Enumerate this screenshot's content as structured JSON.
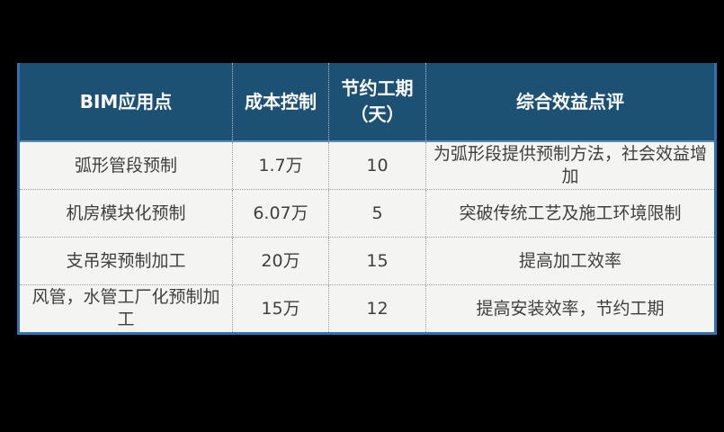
{
  "page": {
    "background_color": "#000000"
  },
  "table": {
    "columns": [
      "BIM应用点",
      "成本控制",
      "节约工期\n（天）",
      "综合效益点评"
    ],
    "rows": [
      [
        "弧形管段预制",
        "1.7万",
        "10",
        "为弧形段提供预制方法，社会效益增加"
      ],
      [
        "机房模块化预制",
        "6.07万",
        "5",
        "突破传统工艺及施工环境限制"
      ],
      [
        "支吊架预制加工",
        "20万",
        "15",
        "提高加工效率"
      ],
      [
        "风管，水管工厂化预制加工",
        "15万",
        "12",
        "提高安装效率，节约工期"
      ]
    ],
    "colors": {
      "header_background": "#1c5174",
      "header_text": "#fbfbfb",
      "body_background": "#f4f4f3",
      "body_text": "#3f3f3f",
      "outer_border": "#2e74b5",
      "divider": "#9e9e9e"
    }
  },
  "chart_data": {
    "type": "table",
    "title": "",
    "columns": [
      "BIM应用点",
      "成本控制",
      "节约工期（天）",
      "综合效益点评"
    ],
    "rows": [
      {
        "application": "弧形管段预制",
        "cost_control": "1.7万",
        "days_saved": 10,
        "benefit_comment": "为弧形段提供预制方法，社会效益增加"
      },
      {
        "application": "机房模块化预制",
        "cost_control": "6.07万",
        "days_saved": 5,
        "benefit_comment": "突破传统工艺及施工环境限制"
      },
      {
        "application": "支吊架预制加工",
        "cost_control": "20万",
        "days_saved": 15,
        "benefit_comment": "提高加工效率"
      },
      {
        "application": "风管，水管工厂化预制加工",
        "cost_control": "15万",
        "days_saved": 12,
        "benefit_comment": "提高安装效率，节约工期"
      }
    ],
    "layout": {
      "header_style": "dark-blue solid",
      "grid": "dotted",
      "legend": "none"
    }
  }
}
